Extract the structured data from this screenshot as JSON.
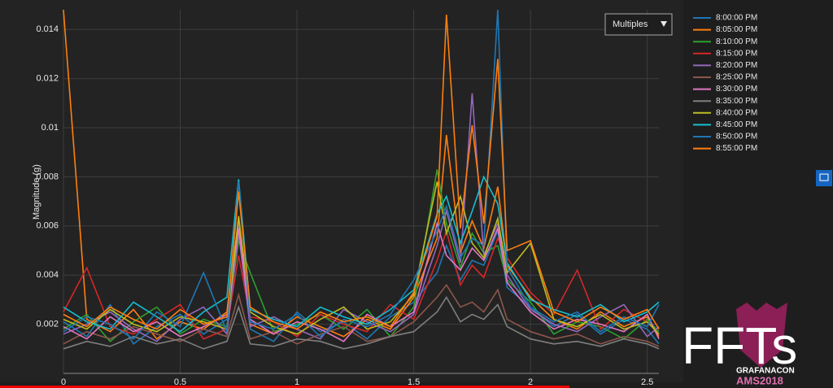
{
  "chart_data": {
    "type": "line",
    "ylabel": "Magnitude (g)",
    "x": [
      0,
      0.1,
      0.2,
      0.3,
      0.4,
      0.5,
      0.6,
      0.7,
      0.75,
      0.8,
      0.9,
      1.0,
      1.1,
      1.2,
      1.3,
      1.4,
      1.5,
      1.6,
      1.64,
      1.7,
      1.75,
      1.8,
      1.86,
      1.9,
      2.0,
      2.1,
      2.2,
      2.3,
      2.4,
      2.5,
      2.55
    ],
    "xlim": [
      0,
      2.55
    ],
    "xticks": [
      0,
      0.5,
      1,
      1.5,
      2,
      2.5
    ],
    "ylim": [
      0,
      0.0148
    ],
    "yticks": [
      0.002,
      0.004,
      0.006,
      0.008,
      0.01,
      0.012,
      0.014
    ],
    "grid": true,
    "legend": "right",
    "series": [
      {
        "name": "8:00:00 PM",
        "color": "#1f77b4",
        "values": [
          0.0021,
          0.0015,
          0.0028,
          0.0012,
          0.0019,
          0.0024,
          0.0016,
          0.0022,
          0.0061,
          0.0018,
          0.0013,
          0.0025,
          0.0017,
          0.0021,
          0.0014,
          0.0023,
          0.0029,
          0.0041,
          0.0052,
          0.0038,
          0.0046,
          0.0044,
          0.0058,
          0.0035,
          0.0027,
          0.0019,
          0.0024,
          0.0016,
          0.0022,
          0.0018,
          0.0012
        ]
      },
      {
        "name": "8:05:00 PM",
        "color": "#ff7f0e",
        "values": [
          0.0148,
          0.0022,
          0.0017,
          0.0026,
          0.0014,
          0.0021,
          0.0018,
          0.0025,
          0.0063,
          0.002,
          0.0016,
          0.0023,
          0.0019,
          0.0015,
          0.0022,
          0.0018,
          0.0031,
          0.0055,
          0.0097,
          0.0049,
          0.0062,
          0.0051,
          0.0076,
          0.0044,
          0.0031,
          0.0022,
          0.0018,
          0.0025,
          0.0019,
          0.0023,
          0.0015
        ]
      },
      {
        "name": "8:10:00 PM",
        "color": "#2ca02c",
        "values": [
          0.0018,
          0.0024,
          0.0013,
          0.0021,
          0.0027,
          0.0016,
          0.0022,
          0.0019,
          0.0054,
          0.0041,
          0.0017,
          0.002,
          0.0024,
          0.0018,
          0.0026,
          0.0015,
          0.0027,
          0.0083,
          0.0061,
          0.0043,
          0.0057,
          0.0049,
          0.0052,
          0.0038,
          0.0029,
          0.0016,
          0.0021,
          0.0019,
          0.0014,
          0.0022,
          0.0017
        ]
      },
      {
        "name": "8:15:00 PM",
        "color": "#d62728",
        "values": [
          0.0025,
          0.0043,
          0.0019,
          0.0016,
          0.0022,
          0.0028,
          0.0014,
          0.0018,
          0.0048,
          0.0023,
          0.0021,
          0.0015,
          0.0024,
          0.002,
          0.0017,
          0.0028,
          0.0022,
          0.0046,
          0.0058,
          0.0036,
          0.0044,
          0.0039,
          0.0055,
          0.0047,
          0.0033,
          0.0024,
          0.0042,
          0.0018,
          0.0026,
          0.0021,
          0.0016
        ]
      },
      {
        "name": "8:20:00 PM",
        "color": "#9467bd",
        "values": [
          0.0016,
          0.002,
          0.0025,
          0.0018,
          0.0013,
          0.0022,
          0.0027,
          0.0016,
          0.0057,
          0.0019,
          0.0023,
          0.0018,
          0.0014,
          0.0026,
          0.0021,
          0.0017,
          0.0024,
          0.0052,
          0.0066,
          0.0045,
          0.0114,
          0.0048,
          0.0061,
          0.004,
          0.0026,
          0.002,
          0.0017,
          0.0023,
          0.0028,
          0.0015,
          0.0019
        ]
      },
      {
        "name": "8:25:00 PM",
        "color": "#8c564b",
        "values": [
          0.0012,
          0.0017,
          0.0014,
          0.0019,
          0.0016,
          0.0013,
          0.0018,
          0.0015,
          0.0032,
          0.0014,
          0.0017,
          0.0012,
          0.0016,
          0.0019,
          0.0013,
          0.0015,
          0.0021,
          0.0031,
          0.0036,
          0.0027,
          0.0029,
          0.0025,
          0.0034,
          0.0022,
          0.0017,
          0.0014,
          0.0016,
          0.0012,
          0.0015,
          0.0013,
          0.0011
        ]
      },
      {
        "name": "8:30:00 PM",
        "color": "#e377c2",
        "values": [
          0.0019,
          0.0014,
          0.0023,
          0.0017,
          0.0021,
          0.0015,
          0.0019,
          0.0024,
          0.0059,
          0.0022,
          0.0016,
          0.0021,
          0.0018,
          0.0013,
          0.0024,
          0.0019,
          0.0025,
          0.0061,
          0.0048,
          0.0042,
          0.0051,
          0.0046,
          0.0059,
          0.0037,
          0.0025,
          0.0018,
          0.0022,
          0.002,
          0.0017,
          0.0024,
          0.0014
        ]
      },
      {
        "name": "8:35:00 PM",
        "color": "#7f7f7f",
        "values": [
          0.001,
          0.0013,
          0.0011,
          0.0015,
          0.0012,
          0.0014,
          0.001,
          0.0013,
          0.0027,
          0.0012,
          0.0011,
          0.0014,
          0.0013,
          0.001,
          0.0012,
          0.0015,
          0.0017,
          0.0025,
          0.0031,
          0.0021,
          0.0024,
          0.0022,
          0.0028,
          0.0019,
          0.0014,
          0.0012,
          0.0013,
          0.0011,
          0.0014,
          0.0012,
          0.001
        ]
      },
      {
        "name": "8:40:00 PM",
        "color": "#bcbd22",
        "values": [
          0.0022,
          0.0018,
          0.0026,
          0.002,
          0.0017,
          0.0023,
          0.0021,
          0.0018,
          0.0064,
          0.0025,
          0.0019,
          0.0016,
          0.0022,
          0.0027,
          0.0018,
          0.0021,
          0.0032,
          0.0078,
          0.0057,
          0.0072,
          0.0053,
          0.0047,
          0.0063,
          0.0041,
          0.0053,
          0.0022,
          0.0019,
          0.0024,
          0.0018,
          0.0021,
          0.0016
        ]
      },
      {
        "name": "8:45:00 PM",
        "color": "#17becf",
        "values": [
          0.0027,
          0.0021,
          0.0018,
          0.0029,
          0.0023,
          0.0017,
          0.0025,
          0.0031,
          0.0079,
          0.0026,
          0.0022,
          0.0019,
          0.0027,
          0.0023,
          0.002,
          0.0026,
          0.0034,
          0.0065,
          0.0072,
          0.0053,
          0.0066,
          0.008,
          0.0069,
          0.0045,
          0.003,
          0.0026,
          0.0023,
          0.0028,
          0.0021,
          0.0025,
          0.0029
        ]
      },
      {
        "name": "8:50:00 PM",
        "color": "#1f77b4",
        "values": [
          0.0017,
          0.0023,
          0.002,
          0.0014,
          0.0025,
          0.0019,
          0.0041,
          0.0017,
          0.0078,
          0.0021,
          0.0018,
          0.0024,
          0.0015,
          0.0022,
          0.0019,
          0.0024,
          0.0038,
          0.0058,
          0.0068,
          0.0047,
          0.0055,
          0.0052,
          0.0148,
          0.0043,
          0.0027,
          0.0021,
          0.0025,
          0.0017,
          0.0023,
          0.0019,
          0.0028
        ]
      },
      {
        "name": "8:55:00 PM",
        "color": "#ff7f0e",
        "values": [
          0.0024,
          0.0019,
          0.0027,
          0.0022,
          0.0018,
          0.0026,
          0.002,
          0.0023,
          0.0074,
          0.0027,
          0.0021,
          0.0018,
          0.0025,
          0.0021,
          0.0023,
          0.0019,
          0.0033,
          0.0064,
          0.0146,
          0.0059,
          0.0101,
          0.0061,
          0.0128,
          0.005,
          0.0054,
          0.0025,
          0.0021,
          0.0027,
          0.0022,
          0.0026,
          0.0018
        ]
      }
    ]
  },
  "overlay": {
    "dropdown": "Multiples",
    "logo": "FFTs",
    "event": "GRAFANACON",
    "edition": "AMS2018"
  }
}
